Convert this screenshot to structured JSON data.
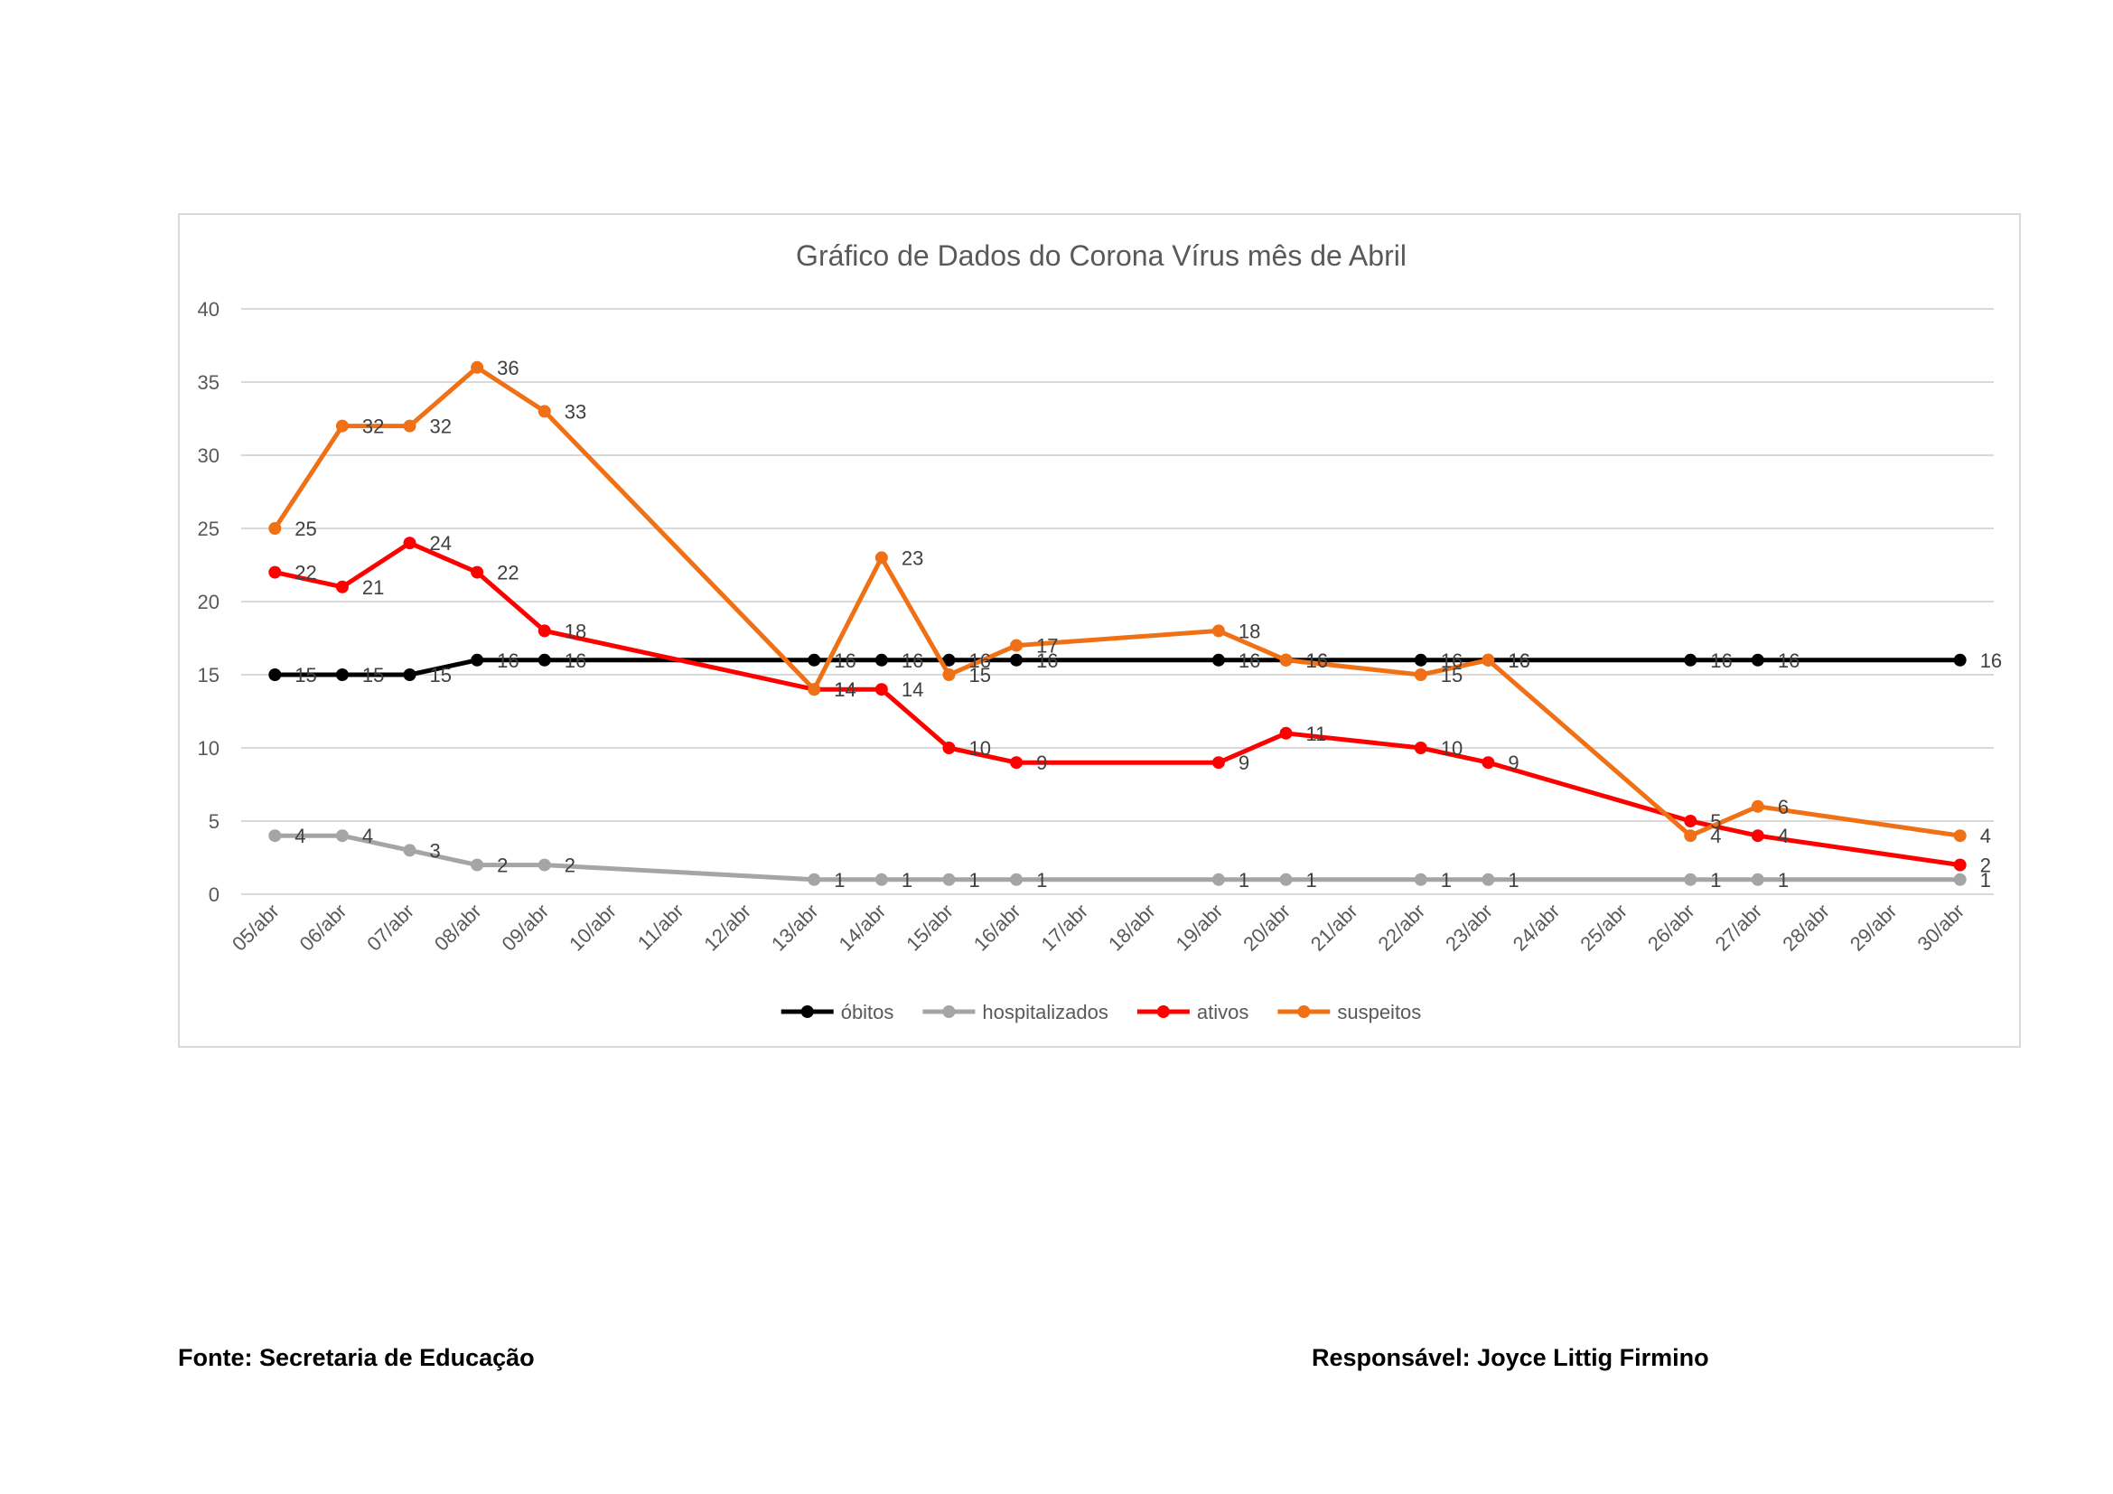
{
  "chart_data": {
    "type": "line",
    "title": "Gráfico de Dados do Corona Vírus  mês de Abril",
    "xlabel": "",
    "ylabel": "",
    "ylim": [
      0,
      40
    ],
    "yticks": [
      "0",
      "5",
      "10",
      "15",
      "20",
      "25",
      "30",
      "35",
      "40"
    ],
    "grid": true,
    "legend_position": "bottom",
    "categories": [
      "05/abr",
      "06/abr",
      "07/abr",
      "08/abr",
      "09/abr",
      "10/abr",
      "11/abr",
      "12/abr",
      "13/abr",
      "14/abr",
      "15/abr",
      "16/abr",
      "17/abr",
      "18/abr",
      "19/abr",
      "20/abr",
      "21/abr",
      "22/abr",
      "23/abr",
      "24/abr",
      "25/abr",
      "26/abr",
      "27/abr",
      "28/abr",
      "29/abr",
      "30/abr"
    ],
    "series": [
      {
        "name": "óbitos",
        "color": "#000000",
        "values": [
          15,
          15,
          15,
          16,
          16,
          null,
          null,
          null,
          16,
          16,
          16,
          16,
          null,
          null,
          16,
          16,
          null,
          16,
          16,
          null,
          null,
          16,
          16,
          null,
          null,
          16
        ]
      },
      {
        "name": "hospitalizados",
        "color": "#a5a5a5",
        "values": [
          4,
          4,
          3,
          2,
          2,
          null,
          null,
          null,
          1,
          1,
          1,
          1,
          null,
          null,
          1,
          1,
          null,
          1,
          1,
          null,
          null,
          1,
          1,
          null,
          null,
          1
        ]
      },
      {
        "name": "ativos",
        "color": "#ff0000",
        "values": [
          22,
          21,
          24,
          22,
          18,
          null,
          null,
          null,
          14,
          14,
          10,
          9,
          null,
          null,
          9,
          11,
          null,
          10,
          9,
          null,
          null,
          5,
          4,
          null,
          null,
          2
        ]
      },
      {
        "name": "suspeitos",
        "color": "#f07016",
        "values": [
          25,
          32,
          32,
          36,
          33,
          null,
          null,
          null,
          14,
          23,
          15,
          17,
          null,
          null,
          18,
          16,
          null,
          15,
          16,
          null,
          null,
          4,
          6,
          null,
          null,
          4
        ]
      }
    ]
  },
  "footer": {
    "source": "Fonte: Secretaria de Educação",
    "responsible": "Responsável:  Joyce Littig Firmino"
  }
}
